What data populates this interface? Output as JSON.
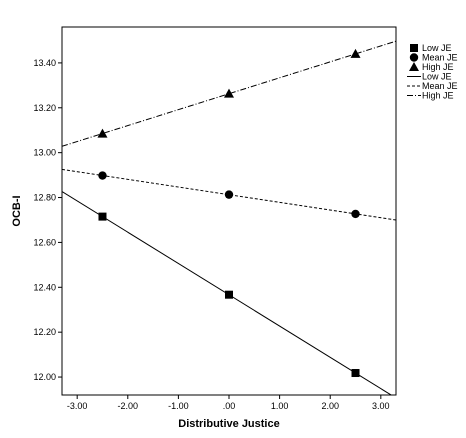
{
  "chart_data": {
    "type": "scatter",
    "xlabel": "Distributive Justice",
    "ylabel": "OCB-I",
    "xlim": [
      -3.3,
      3.3
    ],
    "ylim": [
      11.92,
      13.56
    ],
    "xticks": [
      -3,
      -2,
      -1,
      0,
      1,
      2,
      3
    ],
    "xtick_labels": [
      "-3.00",
      "-2.00",
      "-1.00",
      ".00",
      "1.00",
      "2.00",
      "3.00"
    ],
    "yticks": [
      12.0,
      12.2,
      12.4,
      12.6,
      12.8,
      13.0,
      13.2,
      13.4
    ],
    "ytick_labels": [
      "12.00",
      "12.20",
      "12.40",
      "12.60",
      "12.80",
      "13.00",
      "13.20",
      "13.40"
    ],
    "grid": false,
    "legend_position": "right-outside-top",
    "series": [
      {
        "name": "Low JE",
        "marker": "square",
        "line_style": "solid",
        "x": [
          -2.5,
          0,
          2.5
        ],
        "y": [
          12.715,
          12.367,
          12.018
        ]
      },
      {
        "name": "Mean JE",
        "marker": "circle",
        "line_style": "dashed",
        "x": [
          -2.5,
          0,
          2.5
        ],
        "y": [
          12.898,
          12.813,
          12.727
        ]
      },
      {
        "name": "High JE",
        "marker": "triangle",
        "line_style": "dashdot",
        "x": [
          -2.5,
          0,
          2.5
        ],
        "y": [
          13.085,
          13.263,
          13.44
        ]
      }
    ],
    "legend": {
      "marker_entries": [
        "Low JE",
        "Mean JE",
        "High JE"
      ],
      "line_entries": [
        "Low JE",
        "Mean JE",
        "High JE"
      ]
    }
  }
}
